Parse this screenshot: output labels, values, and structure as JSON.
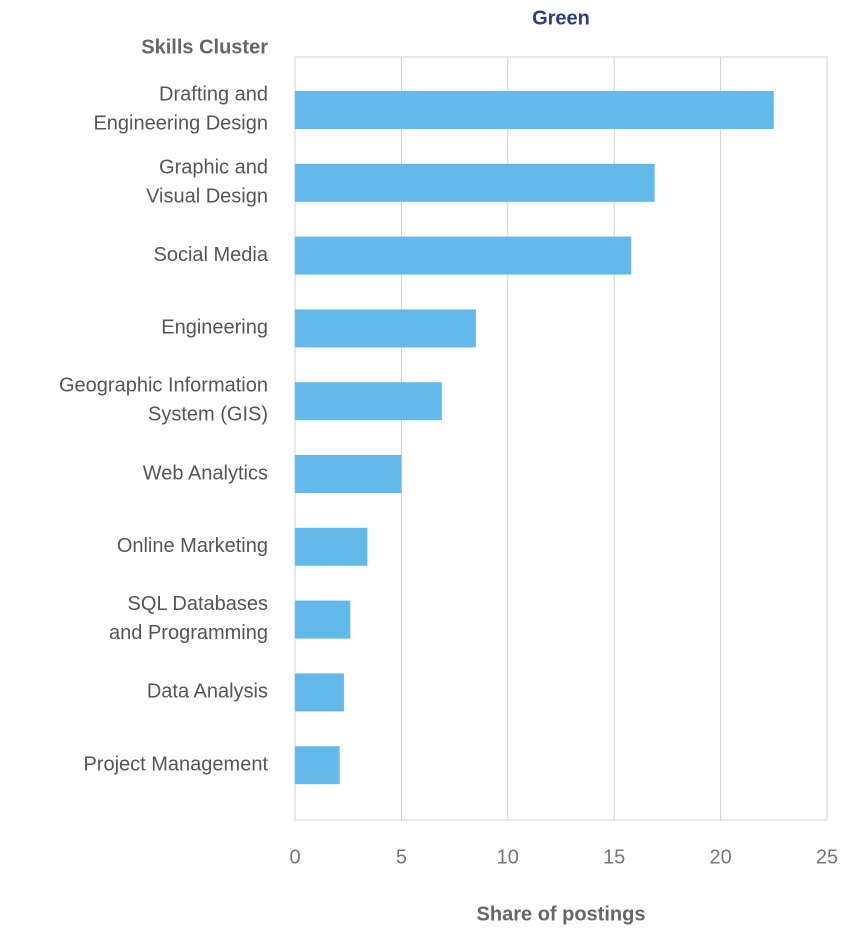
{
  "chart_data": {
    "type": "hbar",
    "title": "Green",
    "category_axis_label": "Skills Cluster",
    "xlabel": "Share of postings",
    "categories": [
      "Drafting and\nEngineering Design",
      "Graphic and\nVisual Design",
      "Social Media",
      "Engineering",
      "Geographic Information\nSystem (GIS)",
      "Web Analytics",
      "Online Marketing",
      "SQL Databases\nand Programming",
      "Data Analysis",
      "Project Management"
    ],
    "values": [
      22.5,
      16.9,
      15.8,
      8.5,
      6.9,
      5.0,
      3.4,
      2.6,
      2.3,
      2.1
    ],
    "color": "#63b9e9",
    "xlim": [
      0,
      25
    ],
    "xticks": [
      0,
      5,
      10,
      15,
      20,
      25
    ],
    "grid": true
  }
}
